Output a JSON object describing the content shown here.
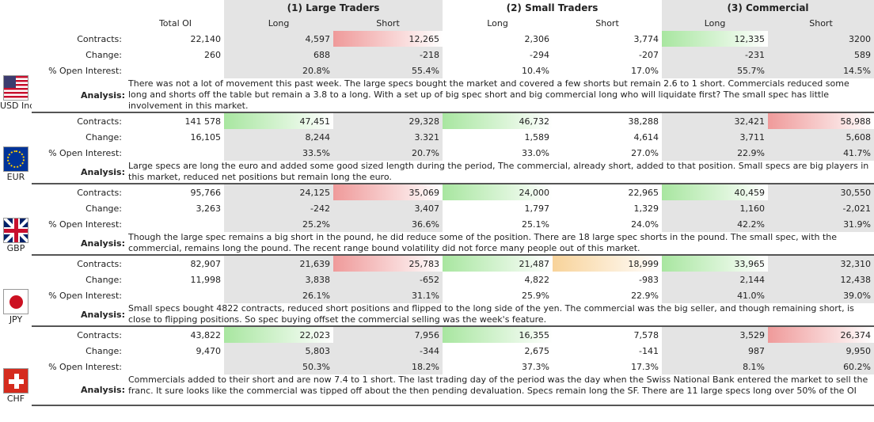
{
  "header": {
    "groups": [
      "(1) Large Traders",
      "(2) Small Traders",
      "(3) Commercial"
    ],
    "total_oi": "Total OI",
    "long": "Long",
    "short": "Short"
  },
  "row_labels": {
    "contracts": "Contracts:",
    "change": "Change:",
    "pct_oi": "% Open Interest:",
    "analysis": "Analysis:"
  },
  "highlight_colors": {
    "green": "#a8e6a0",
    "red": "#ef9a9a",
    "orange": "#f8d39a",
    "gray": "#e4e4e4"
  },
  "currencies": [
    {
      "code": "USD Index",
      "flag_icon": "us-flag-icon",
      "contracts": [
        "22,140",
        "4,597",
        "12,265",
        "2,306",
        "3,774",
        "12,335",
        "3200"
      ],
      "change": [
        "260",
        "688",
        "-218",
        "-294",
        "-207",
        "-231",
        "589"
      ],
      "pct": [
        "",
        "20.8%",
        "55.4%",
        "10.4%",
        "17.0%",
        "55.7%",
        "14.5%"
      ],
      "analysis": "There was not a lot of movement this past week.  The large specs bought the market and covered a few shorts but remain 2.6 to 1 short.  Commercials reduced some long and shorts off the table but remain a 3.8 to a long. With a set up of big spec short and big commercial long who will liquidate first?  The small spec has little involvement in this market."
    },
    {
      "code": "EUR",
      "flag_icon": "eu-flag-icon",
      "contracts": [
        "141 578",
        "47,451",
        "29,328",
        "46,732",
        "38,288",
        "32,421",
        "58,988"
      ],
      "change": [
        "16,105",
        "8,244",
        "3.321",
        "1,589",
        "4,614",
        "3,711",
        "5,608"
      ],
      "pct": [
        "",
        "33.5%",
        "20.7%",
        "33.0%",
        "27.0%",
        "22.9%",
        "41.7%"
      ],
      "analysis": "Large specs are long the euro and added some good sized length during the period,  The commercial, already short, added to that position.  Small specs are big players in this market, reduced net positions but remain long the euro."
    },
    {
      "code": "GBP",
      "flag_icon": "uk-flag-icon",
      "contracts": [
        "95,766",
        "24,125",
        "35,069",
        "24,000",
        "22,965",
        "40,459",
        "30,550"
      ],
      "change": [
        "3,263",
        "-242",
        "3,407",
        "1,797",
        "1,329",
        "1,160",
        "-2,021"
      ],
      "pct": [
        "",
        "25.2%",
        "36.6%",
        "25.1%",
        "24.0%",
        "42.2%",
        "31.9%"
      ],
      "analysis": "Though the large spec remains a big short in the pound, he did reduce some of the position. There are 18 large spec shorts in the pound.  The small spec, with the commercial, remains long the pound.  The recent range bound volatility did not force many people out of this market."
    },
    {
      "code": "JPY",
      "flag_icon": "japan-flag-icon",
      "contracts": [
        "82,907",
        "21,639",
        "25,783",
        "21,487",
        "18,999",
        "33,965",
        "32,310"
      ],
      "change": [
        "11,998",
        "3,838",
        "-652",
        "4,822",
        "-983",
        "2,144",
        "12,438"
      ],
      "pct": [
        "",
        "26.1%",
        "31.1%",
        "25.9%",
        "22.9%",
        "41.0%",
        "39.0%"
      ],
      "analysis": "Small specs bought 4822 contracts, reduced short positions and flipped to the long side of the yen.  The commercial was the big seller, and though remaining short, is close to flipping positions.  So spec buying offset the commercial selling was  the week's feature."
    },
    {
      "code": "CHF",
      "flag_icon": "swiss-flag-icon",
      "contracts": [
        "43,822",
        "22,023",
        "7,956",
        "16,355",
        "7,578",
        "3,529",
        "26,374"
      ],
      "change": [
        "9,470",
        "5,803",
        "-344",
        "2,675",
        "-141",
        "987",
        "9,950"
      ],
      "pct": [
        "",
        "50.3%",
        "18.2%",
        "37.3%",
        "17.3%",
        "8.1%",
        "60.2%"
      ],
      "analysis": "Commercials added to their short and are now 7.4 to 1 short.  The last trading day of the period was the day when the Swiss National Bank entered the market to sell the franc.  It sure looks like the commercial was tipped off about the then pending devaluation.  Specs remain long the SF.  There are 11 large specs long over 50% of the OI"
    }
  ]
}
